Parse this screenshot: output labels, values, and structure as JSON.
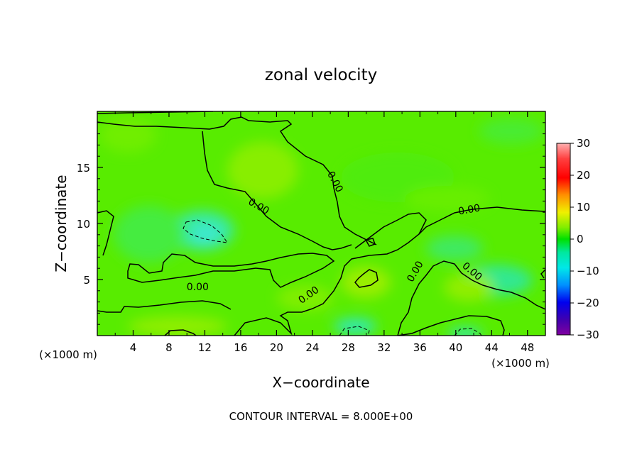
{
  "chart_data": {
    "type": "heatmap",
    "title": "zonal velocity",
    "xlabel": "X−coordinate",
    "ylabel": "Z−coordinate",
    "x_unit_left": "(×1000 m)",
    "x_unit_right": "(×1000 m)",
    "xlim": [
      0,
      50
    ],
    "ylim": [
      0,
      20
    ],
    "x_ticks": [
      4,
      8,
      12,
      16,
      20,
      24,
      28,
      32,
      36,
      40,
      44,
      48
    ],
    "y_ticks": [
      5,
      10,
      15
    ],
    "colorbar": {
      "vmin": -30,
      "vmax": 30,
      "ticks": [
        "30",
        "20",
        "10",
        "0",
        "−10",
        "−20",
        "−30"
      ],
      "tick_values": [
        30,
        20,
        10,
        0,
        -10,
        -20,
        -30
      ]
    },
    "contour_labels": [
      {
        "text": "0.00",
        "x": 26.5,
        "y": 13.7,
        "angle": 62
      },
      {
        "text": "0.00",
        "x": 18.0,
        "y": 11.5,
        "angle": 30
      },
      {
        "text": "0.00",
        "x": 41.5,
        "y": 11.2,
        "angle": -10
      },
      {
        "text": "0.00",
        "x": 35.5,
        "y": 5.7,
        "angle": -60
      },
      {
        "text": "0.00",
        "x": 41.8,
        "y": 5.7,
        "angle": 40
      },
      {
        "text": "0.00",
        "x": 11.2,
        "y": 4.3,
        "angle": 0
      },
      {
        "text": "0.00",
        "x": 23.6,
        "y": 3.6,
        "angle": -35
      }
    ],
    "footnote": "CONTOUR INTERVAL = 8.000E+00"
  }
}
